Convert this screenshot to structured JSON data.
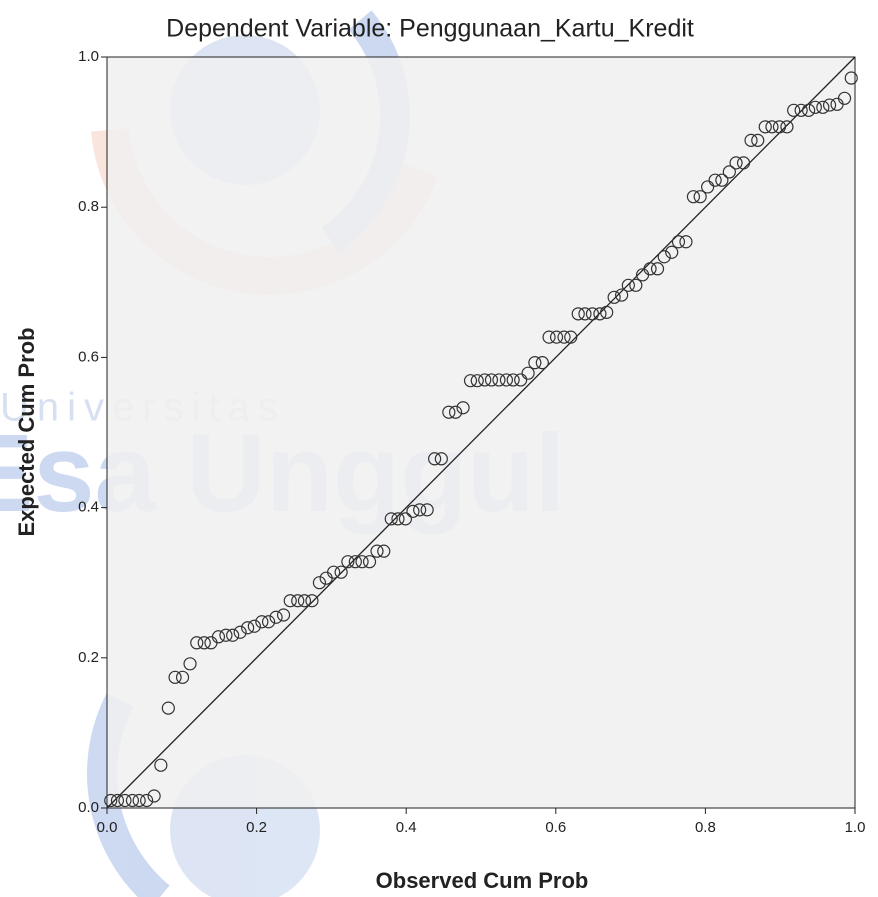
{
  "chart_data": {
    "type": "scatter",
    "title": "Dependent Variable: Penggunaan_Kartu_Kredit",
    "xlabel": "Observed Cum Prob",
    "ylabel": "Expected Cum Prob",
    "watermark": [
      "Universitas",
      "Esa Unggul"
    ],
    "xlim": [
      0,
      1
    ],
    "ylim": [
      0,
      1
    ],
    "xticks": [
      {
        "value": 0,
        "label": "0.0"
      },
      {
        "value": 0.2,
        "label": "0.2"
      },
      {
        "value": 0.4,
        "label": "0.4"
      },
      {
        "value": 0.6,
        "label": "0.6"
      },
      {
        "value": 0.8,
        "label": "0.8"
      },
      {
        "value": 1,
        "label": "1.0"
      }
    ],
    "yticks": [
      {
        "value": 0,
        "label": "0.0"
      },
      {
        "value": 0.2,
        "label": "0.2"
      },
      {
        "value": 0.4,
        "label": "0.4"
      },
      {
        "value": 0.6,
        "label": "0.6"
      },
      {
        "value": 0.8,
        "label": "0.8"
      },
      {
        "value": 1,
        "label": "1.0"
      }
    ],
    "reference_line": true,
    "marker_color": "#333333",
    "x": [
      0.005,
      0.014,
      0.024,
      0.034,
      0.043,
      0.053,
      0.063,
      0.072,
      0.082,
      0.091,
      0.101,
      0.111,
      0.12,
      0.13,
      0.139,
      0.149,
      0.159,
      0.168,
      0.178,
      0.188,
      0.197,
      0.207,
      0.216,
      0.226,
      0.236,
      0.245,
      0.255,
      0.264,
      0.274,
      0.284,
      0.293,
      0.303,
      0.313,
      0.322,
      0.332,
      0.341,
      0.351,
      0.361,
      0.37,
      0.38,
      0.389,
      0.399,
      0.409,
      0.418,
      0.428,
      0.438,
      0.447,
      0.457,
      0.466,
      0.476,
      0.486,
      0.495,
      0.505,
      0.514,
      0.524,
      0.534,
      0.543,
      0.553,
      0.563,
      0.572,
      0.582,
      0.591,
      0.601,
      0.611,
      0.62,
      0.63,
      0.639,
      0.649,
      0.659,
      0.668,
      0.678,
      0.688,
      0.697,
      0.707,
      0.716,
      0.726,
      0.736,
      0.745,
      0.755,
      0.764,
      0.774,
      0.784,
      0.793,
      0.803,
      0.813,
      0.822,
      0.832,
      0.841,
      0.851,
      0.861,
      0.87,
      0.88,
      0.889,
      0.899,
      0.909,
      0.918,
      0.928,
      0.938,
      0.947,
      0.957,
      0.966,
      0.976,
      0.986,
      0.995
    ],
    "values": [
      0.01,
      0.01,
      0.01,
      0.01,
      0.01,
      0.01,
      0.016,
      0.057,
      0.133,
      0.174,
      0.174,
      0.192,
      0.22,
      0.22,
      0.22,
      0.228,
      0.23,
      0.23,
      0.234,
      0.24,
      0.242,
      0.248,
      0.248,
      0.254,
      0.257,
      0.276,
      0.276,
      0.276,
      0.276,
      0.3,
      0.306,
      0.314,
      0.314,
      0.328,
      0.328,
      0.328,
      0.328,
      0.342,
      0.342,
      0.385,
      0.385,
      0.385,
      0.395,
      0.397,
      0.397,
      0.465,
      0.465,
      0.527,
      0.527,
      0.533,
      0.569,
      0.569,
      0.57,
      0.57,
      0.57,
      0.57,
      0.57,
      0.57,
      0.579,
      0.593,
      0.593,
      0.627,
      0.627,
      0.627,
      0.627,
      0.658,
      0.658,
      0.658,
      0.658,
      0.66,
      0.68,
      0.683,
      0.696,
      0.696,
      0.71,
      0.718,
      0.718,
      0.734,
      0.74,
      0.754,
      0.754,
      0.814,
      0.814,
      0.827,
      0.836,
      0.836,
      0.847,
      0.859,
      0.859,
      0.889,
      0.889,
      0.907,
      0.907,
      0.907,
      0.907,
      0.929,
      0.929,
      0.929,
      0.933,
      0.933,
      0.936,
      0.937,
      0.945,
      0.972
    ]
  }
}
